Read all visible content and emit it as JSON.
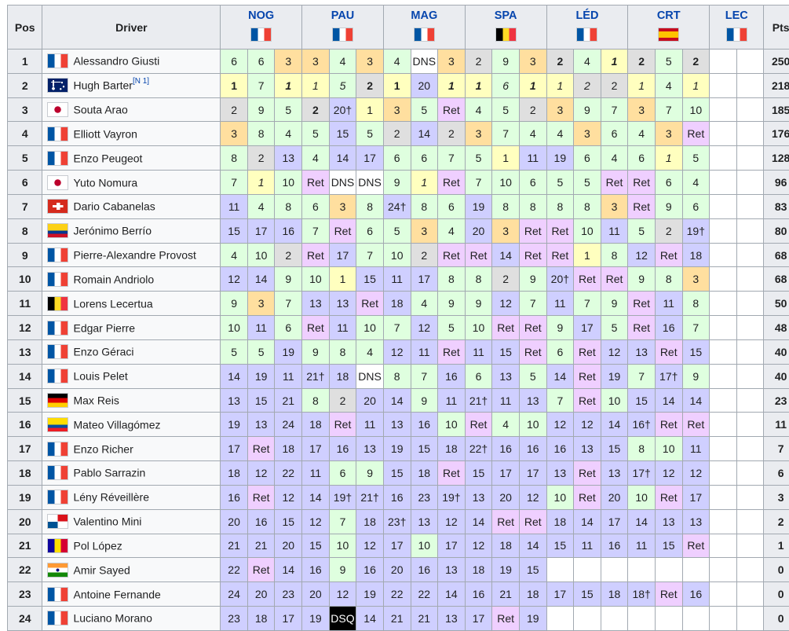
{
  "headers": {
    "pos": "Pos",
    "driver": "Driver",
    "pts": "Pts"
  },
  "events": [
    {
      "name": "NOG",
      "flag": "fr"
    },
    {
      "name": "PAU",
      "flag": "fr"
    },
    {
      "name": "MAG",
      "flag": "fr"
    },
    {
      "name": "SPA",
      "flag": "be"
    },
    {
      "name": "LÉD",
      "flag": "fr"
    },
    {
      "name": "CRT",
      "flag": "es"
    },
    {
      "name": "LEC",
      "flag": "fr"
    }
  ],
  "colors": {
    "gold": "#ffffbf",
    "silver": "#dfdfdf",
    "bronze": "#ffdf9f",
    "green": "#dfffdf",
    "blue": "#cfcfff",
    "ret": "#efcfff",
    "dns": "#ffffff",
    "dsq": "#000000",
    "link": "#0645ad",
    "header_bg": "#eaecf0",
    "border": "#a2a9b1"
  },
  "rows": [
    {
      "pos": "1",
      "driver": "Alessandro Giusti",
      "flag": "fr",
      "pts": "250",
      "results": [
        "6",
        "6",
        "3",
        "3",
        "4",
        "3",
        "4",
        "DNS",
        "3",
        "2",
        "9",
        "3",
        "2",
        "4",
        "1",
        "2",
        "5",
        "2",
        "",
        ""
      ],
      "styles": [
        "",
        "",
        "",
        "",
        "",
        "",
        "",
        "",
        "",
        "",
        "",
        "",
        "b",
        "",
        "bi",
        "b",
        "",
        "b",
        "",
        ""
      ]
    },
    {
      "pos": "2",
      "driver": "Hugh Barter",
      "note": "[N 1]",
      "flag": "au",
      "pts": "218",
      "results": [
        "1",
        "7",
        "1",
        "1",
        "5",
        "2",
        "1",
        "20",
        "1",
        "1",
        "6",
        "1",
        "1",
        "2",
        "2",
        "1",
        "4",
        "1",
        "",
        ""
      ],
      "styles": [
        "b",
        "",
        "bi",
        "i",
        "i",
        "b",
        "b",
        "",
        "bi",
        "bi",
        "i",
        "bi",
        "i",
        "i",
        "",
        "i",
        "",
        "i",
        "",
        ""
      ]
    },
    {
      "pos": "3",
      "driver": "Souta Arao",
      "flag": "jp",
      "pts": "185",
      "results": [
        "2",
        "9",
        "5",
        "2",
        "20†",
        "1",
        "3",
        "5",
        "Ret",
        "4",
        "5",
        "2",
        "3",
        "9",
        "7",
        "3",
        "7",
        "10",
        "",
        ""
      ],
      "styles": [
        "",
        "",
        "",
        "b",
        "",
        "",
        "",
        "",
        "",
        "",
        "",
        "",
        "",
        "",
        "",
        "",
        "",
        "",
        "",
        ""
      ]
    },
    {
      "pos": "4",
      "driver": "Elliott Vayron",
      "flag": "fr",
      "pts": "176",
      "results": [
        "3",
        "8",
        "4",
        "5",
        "15",
        "5",
        "2",
        "14",
        "2",
        "3",
        "7",
        "4",
        "4",
        "3",
        "6",
        "4",
        "3",
        "Ret",
        "",
        ""
      ],
      "styles": [
        "",
        "",
        "",
        "",
        "",
        "",
        "",
        "",
        "",
        "",
        "",
        "",
        "",
        "",
        "",
        "",
        "",
        "",
        "",
        ""
      ]
    },
    {
      "pos": "5",
      "driver": "Enzo Peugeot",
      "flag": "fr",
      "pts": "128",
      "results": [
        "8",
        "2",
        "13",
        "4",
        "14",
        "17",
        "6",
        "6",
        "7",
        "5",
        "1",
        "11",
        "19",
        "6",
        "4",
        "6",
        "1",
        "5",
        "",
        ""
      ],
      "styles": [
        "",
        "",
        "",
        "",
        "",
        "",
        "",
        "",
        "",
        "",
        "",
        "",
        "",
        "",
        "",
        "",
        "i",
        "",
        "",
        ""
      ]
    },
    {
      "pos": "6",
      "driver": "Yuto Nomura",
      "flag": "jp",
      "pts": "96",
      "results": [
        "7",
        "1",
        "10",
        "Ret",
        "DNS",
        "DNS",
        "9",
        "1",
        "Ret",
        "7",
        "10",
        "6",
        "5",
        "5",
        "Ret",
        "Ret",
        "6",
        "4",
        "",
        ""
      ],
      "styles": [
        "",
        "i",
        "",
        "",
        "",
        "",
        "",
        "i",
        "",
        "",
        "",
        "",
        "",
        "",
        "",
        "",
        "",
        "",
        "",
        ""
      ]
    },
    {
      "pos": "7",
      "driver": "Dario Cabanelas",
      "flag": "ch",
      "pts": "83",
      "results": [
        "11",
        "4",
        "8",
        "6",
        "3",
        "8",
        "24†",
        "8",
        "6",
        "19",
        "8",
        "8",
        "8",
        "8",
        "3",
        "Ret",
        "9",
        "6",
        "",
        ""
      ],
      "styles": [
        "",
        "",
        "",
        "",
        "",
        "",
        "",
        "",
        "",
        "",
        "",
        "",
        "",
        "",
        "",
        "",
        "",
        "",
        "",
        ""
      ]
    },
    {
      "pos": "8",
      "driver": "Jerónimo Berrío",
      "flag": "co",
      "pts": "80",
      "results": [
        "15",
        "17",
        "16",
        "7",
        "Ret",
        "6",
        "5",
        "3",
        "4",
        "20",
        "3",
        "Ret",
        "Ret",
        "10",
        "11",
        "5",
        "2",
        "19†",
        "",
        ""
      ],
      "styles": [
        "",
        "",
        "",
        "",
        "",
        "",
        "",
        "",
        "",
        "",
        "",
        "",
        "",
        "",
        "",
        "",
        "",
        "",
        "",
        ""
      ]
    },
    {
      "pos": "9",
      "driver": "Pierre-Alexandre Provost",
      "flag": "fr",
      "pts": "68",
      "results": [
        "4",
        "10",
        "2",
        "Ret",
        "17",
        "7",
        "10",
        "2",
        "Ret",
        "Ret",
        "14",
        "Ret",
        "Ret",
        "1",
        "8",
        "12",
        "Ret",
        "18",
        "",
        ""
      ],
      "styles": [
        "",
        "",
        "",
        "",
        "",
        "",
        "",
        "",
        "",
        "",
        "",
        "",
        "",
        "",
        "",
        "",
        "",
        "",
        "",
        ""
      ]
    },
    {
      "pos": "10",
      "driver": "Romain Andriolo",
      "flag": "fr",
      "pts": "68",
      "results": [
        "12",
        "14",
        "9",
        "10",
        "1",
        "15",
        "11",
        "17",
        "8",
        "8",
        "2",
        "9",
        "20†",
        "Ret",
        "Ret",
        "9",
        "8",
        "3",
        "",
        ""
      ],
      "styles": [
        "",
        "",
        "",
        "",
        "",
        "",
        "",
        "",
        "",
        "",
        "",
        "",
        "",
        "",
        "",
        "",
        "",
        "",
        "",
        ""
      ]
    },
    {
      "pos": "11",
      "driver": "Lorens Lecertua",
      "flag": "be",
      "pts": "50",
      "results": [
        "9",
        "3",
        "7",
        "13",
        "13",
        "Ret",
        "18",
        "4",
        "9",
        "9",
        "12",
        "7",
        "11",
        "7",
        "9",
        "Ret",
        "11",
        "8",
        "",
        ""
      ],
      "styles": [
        "",
        "",
        "",
        "",
        "",
        "",
        "",
        "",
        "",
        "",
        "",
        "",
        "",
        "",
        "",
        "",
        "",
        "",
        "",
        ""
      ]
    },
    {
      "pos": "12",
      "driver": "Edgar Pierre",
      "flag": "fr",
      "pts": "48",
      "results": [
        "10",
        "11",
        "6",
        "Ret",
        "11",
        "10",
        "7",
        "12",
        "5",
        "10",
        "Ret",
        "Ret",
        "9",
        "17",
        "5",
        "Ret",
        "16",
        "7",
        "",
        ""
      ],
      "styles": [
        "",
        "",
        "",
        "",
        "",
        "",
        "",
        "",
        "",
        "",
        "",
        "",
        "",
        "",
        "",
        "",
        "",
        "",
        "",
        ""
      ]
    },
    {
      "pos": "13",
      "driver": "Enzo Géraci",
      "flag": "fr",
      "pts": "40",
      "results": [
        "5",
        "5",
        "19",
        "9",
        "8",
        "4",
        "12",
        "11",
        "Ret",
        "11",
        "15",
        "Ret",
        "6",
        "Ret",
        "12",
        "13",
        "Ret",
        "15",
        "",
        ""
      ],
      "styles": [
        "",
        "",
        "",
        "",
        "",
        "",
        "",
        "",
        "",
        "",
        "",
        "",
        "",
        "",
        "",
        "",
        "",
        "",
        "",
        ""
      ]
    },
    {
      "pos": "14",
      "driver": "Louis Pelet",
      "flag": "fr",
      "pts": "40",
      "results": [
        "14",
        "19",
        "11",
        "21†",
        "18",
        "DNS",
        "8",
        "7",
        "16",
        "6",
        "13",
        "5",
        "14",
        "Ret",
        "19",
        "7",
        "17†",
        "9",
        "",
        ""
      ],
      "styles": [
        "",
        "",
        "",
        "",
        "",
        "",
        "",
        "",
        "",
        "",
        "",
        "",
        "",
        "",
        "",
        "",
        "",
        "",
        "",
        ""
      ]
    },
    {
      "pos": "15",
      "driver": "Max Reis",
      "flag": "de",
      "pts": "23",
      "results": [
        "13",
        "15",
        "21",
        "8",
        "2",
        "20",
        "14",
        "9",
        "11",
        "21†",
        "11",
        "13",
        "7",
        "Ret",
        "10",
        "15",
        "14",
        "14",
        "",
        ""
      ],
      "styles": [
        "",
        "",
        "",
        "",
        "",
        "",
        "",
        "",
        "",
        "",
        "",
        "",
        "",
        "",
        "",
        "",
        "",
        "",
        "",
        ""
      ]
    },
    {
      "pos": "16",
      "driver": "Mateo Villagómez",
      "flag": "ec",
      "pts": "11",
      "results": [
        "19",
        "13",
        "24",
        "18",
        "Ret",
        "11",
        "13",
        "16",
        "10",
        "Ret",
        "4",
        "10",
        "12",
        "12",
        "14",
        "16†",
        "Ret",
        "Ret",
        "",
        ""
      ],
      "styles": [
        "",
        "",
        "",
        "",
        "",
        "",
        "",
        "",
        "",
        "",
        "",
        "",
        "",
        "",
        "",
        "",
        "",
        "",
        "",
        ""
      ]
    },
    {
      "pos": "17",
      "driver": "Enzo Richer",
      "flag": "fr",
      "pts": "7",
      "results": [
        "17",
        "Ret",
        "18",
        "17",
        "16",
        "13",
        "19",
        "15",
        "18",
        "22†",
        "16",
        "16",
        "16",
        "13",
        "15",
        "8",
        "10",
        "11",
        "",
        ""
      ],
      "styles": [
        "",
        "",
        "",
        "",
        "",
        "",
        "",
        "",
        "",
        "",
        "",
        "",
        "",
        "",
        "",
        "",
        "",
        "",
        "",
        ""
      ]
    },
    {
      "pos": "18",
      "driver": "Pablo Sarrazin",
      "flag": "fr",
      "pts": "6",
      "results": [
        "18",
        "12",
        "22",
        "11",
        "6",
        "9",
        "15",
        "18",
        "Ret",
        "15",
        "17",
        "17",
        "13",
        "Ret",
        "13",
        "17†",
        "12",
        "12",
        "",
        ""
      ],
      "styles": [
        "",
        "",
        "",
        "",
        "",
        "",
        "",
        "",
        "",
        "",
        "",
        "",
        "",
        "",
        "",
        "",
        "",
        "",
        "",
        ""
      ]
    },
    {
      "pos": "19",
      "driver": "Lény Réveillère",
      "flag": "fr",
      "pts": "3",
      "results": [
        "16",
        "Ret",
        "12",
        "14",
        "19†",
        "21†",
        "16",
        "23",
        "19†",
        "13",
        "20",
        "12",
        "10",
        "Ret",
        "20",
        "10",
        "Ret",
        "17",
        "",
        ""
      ],
      "styles": [
        "",
        "",
        "",
        "",
        "",
        "",
        "",
        "",
        "",
        "",
        "",
        "",
        "",
        "",
        "",
        "",
        "",
        "",
        "",
        ""
      ]
    },
    {
      "pos": "20",
      "driver": "Valentino Mini",
      "flag": "pa",
      "pts": "2",
      "results": [
        "20",
        "16",
        "15",
        "12",
        "7",
        "18",
        "23†",
        "13",
        "12",
        "14",
        "Ret",
        "Ret",
        "18",
        "14",
        "17",
        "14",
        "13",
        "13",
        "",
        ""
      ],
      "styles": [
        "",
        "",
        "",
        "",
        "",
        "",
        "",
        "",
        "",
        "",
        "",
        "",
        "",
        "",
        "",
        "",
        "",
        "",
        "",
        ""
      ]
    },
    {
      "pos": "21",
      "driver": "Pol López",
      "flag": "ad",
      "pts": "1",
      "results": [
        "21",
        "21",
        "20",
        "15",
        "10",
        "12",
        "17",
        "10",
        "17",
        "12",
        "18",
        "14",
        "15",
        "11",
        "16",
        "11",
        "15",
        "Ret",
        "",
        ""
      ],
      "styles": [
        "",
        "",
        "",
        "",
        "",
        "",
        "",
        "",
        "",
        "",
        "",
        "",
        "",
        "",
        "",
        "",
        "",
        "",
        "",
        ""
      ]
    },
    {
      "pos": "22",
      "driver": "Amir Sayed",
      "flag": "in",
      "pts": "0",
      "results": [
        "22",
        "Ret",
        "14",
        "16",
        "9",
        "16",
        "20",
        "16",
        "13",
        "18",
        "19",
        "15",
        "",
        "",
        "",
        "",
        "",
        "",
        "",
        ""
      ],
      "styles": [
        "",
        "",
        "",
        "",
        "",
        "",
        "",
        "",
        "",
        "",
        "",
        "",
        "",
        "",
        "",
        "",
        "",
        "",
        "",
        ""
      ]
    },
    {
      "pos": "23",
      "driver": "Antoine Fernande",
      "flag": "fr",
      "pts": "0",
      "results": [
        "24",
        "20",
        "23",
        "20",
        "12",
        "19",
        "22",
        "22",
        "14",
        "16",
        "21",
        "18",
        "17",
        "15",
        "18",
        "18†",
        "Ret",
        "16",
        "",
        ""
      ],
      "styles": [
        "",
        "",
        "",
        "",
        "",
        "",
        "",
        "",
        "",
        "",
        "",
        "",
        "",
        "",
        "",
        "",
        "",
        "",
        "",
        ""
      ]
    },
    {
      "pos": "24",
      "driver": "Luciano Morano",
      "flag": "fr",
      "pts": "0",
      "results": [
        "23",
        "18",
        "17",
        "19",
        "DSQ",
        "14",
        "21",
        "21",
        "13",
        "17",
        "Ret",
        "19",
        "",
        "",
        "",
        "",
        "",
        "",
        "",
        ""
      ],
      "styles": [
        "",
        "",
        "",
        "",
        "",
        "",
        "",
        "",
        "",
        "",
        "",
        "",
        "",
        "",
        "",
        "",
        "",
        "",
        "",
        ""
      ]
    }
  ]
}
